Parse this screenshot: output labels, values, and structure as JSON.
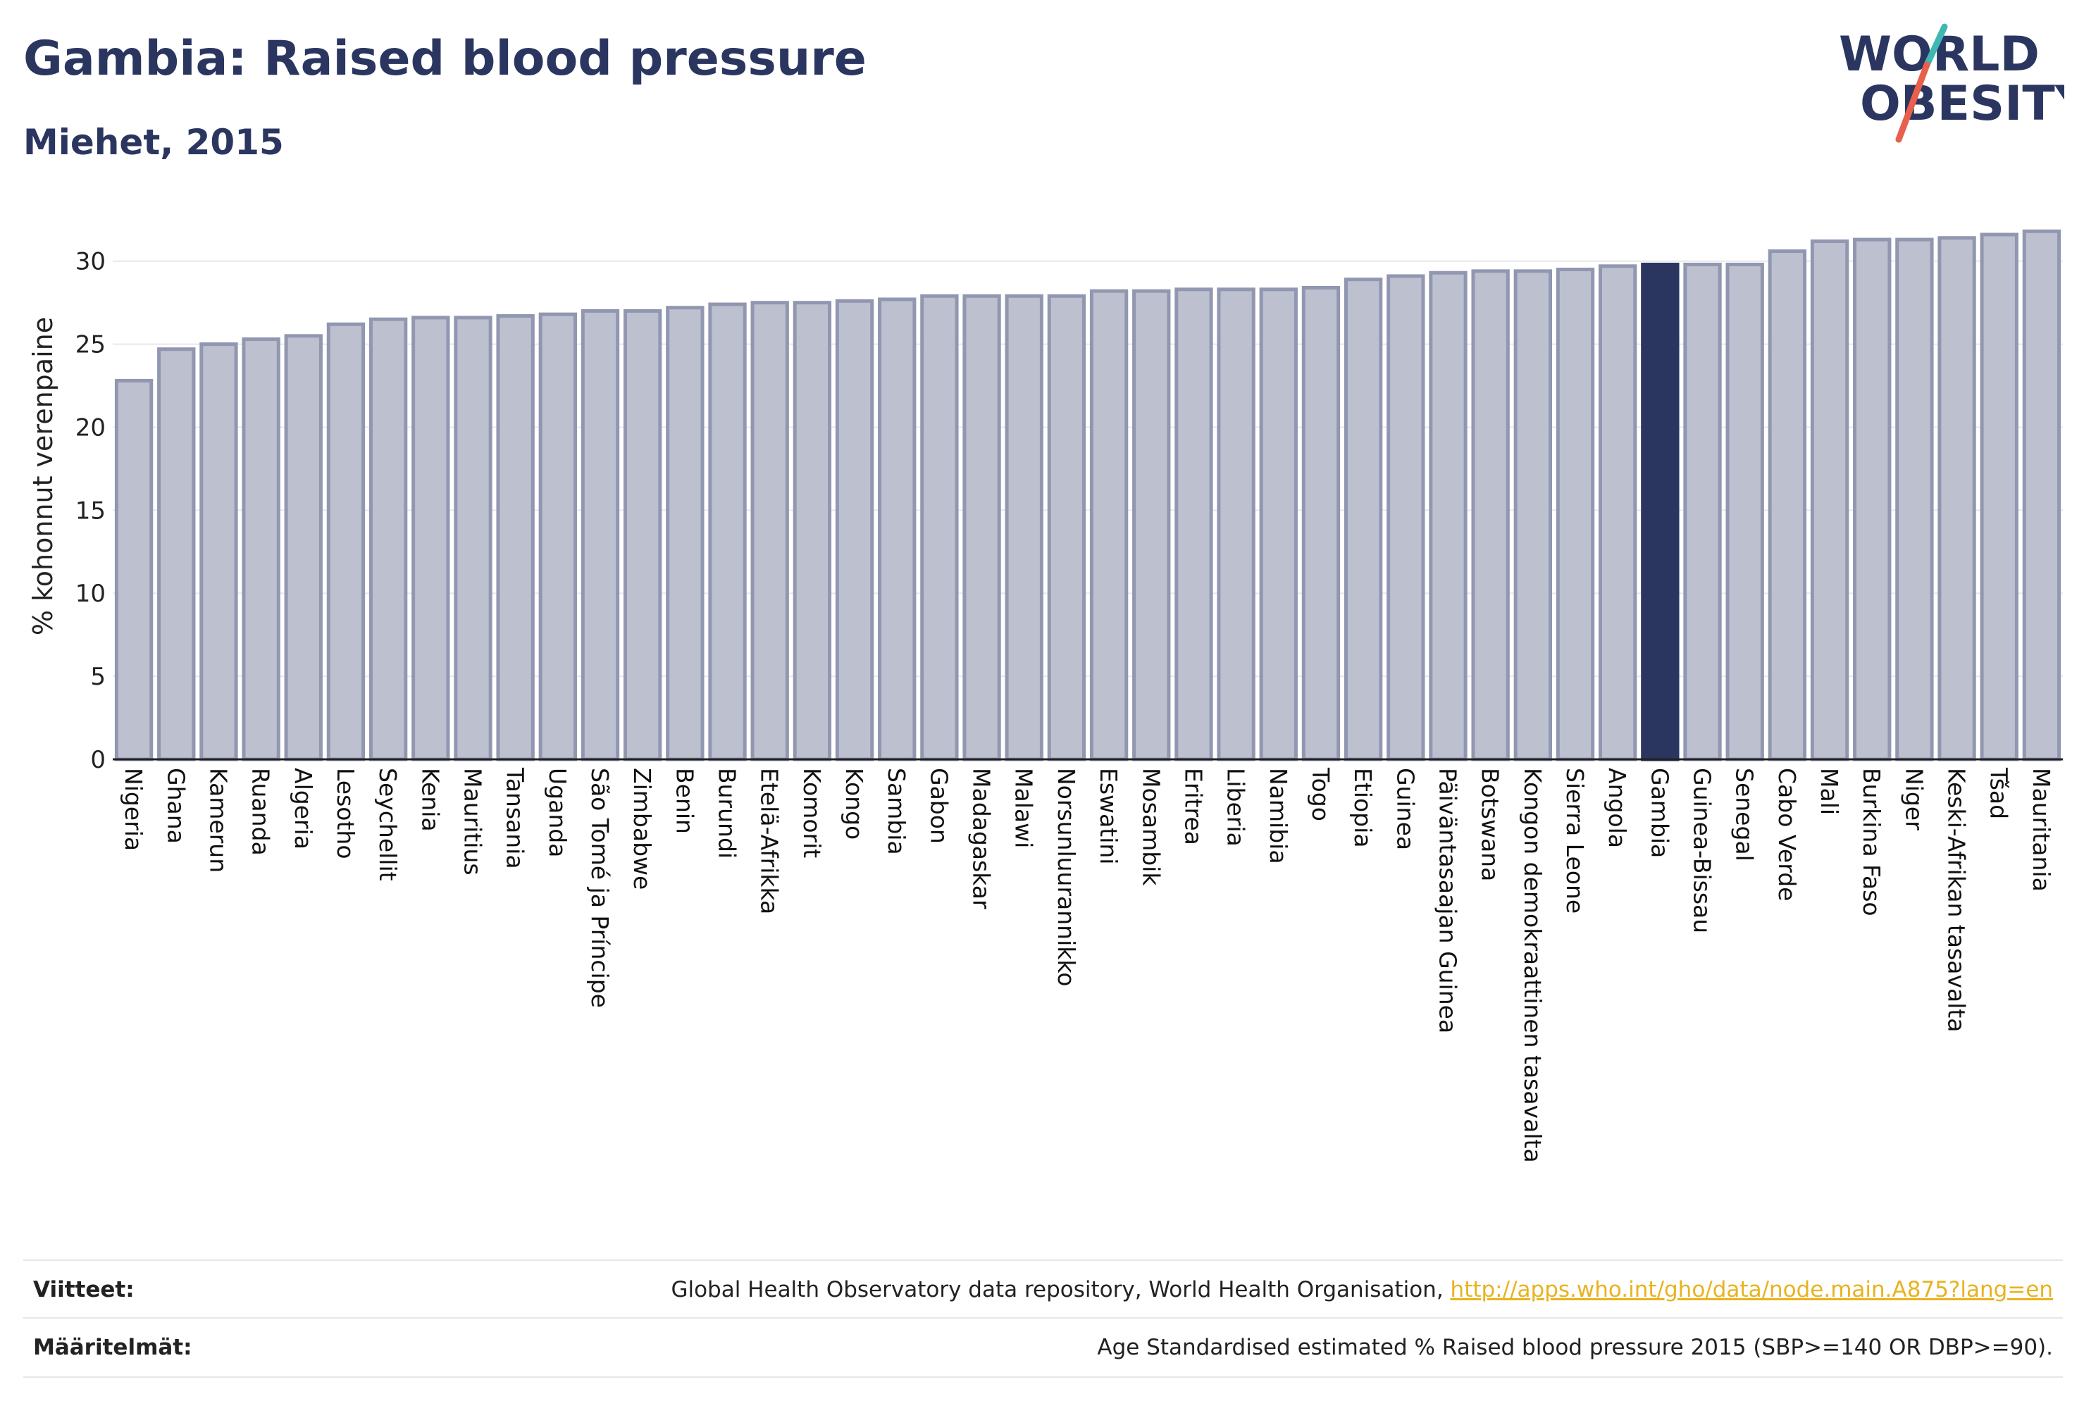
{
  "header": {
    "title": "Gambia: Raised blood pressure",
    "subtitle": "Miehet, 2015"
  },
  "logo": {
    "line1": "WORLD",
    "line2": "OBESITY",
    "colors": {
      "text": "#2b3660",
      "slash_red": "#e8604c",
      "slash_teal": "#3fb8b4"
    }
  },
  "colors": {
    "bar_fill": "#bcc0cf",
    "bar_stroke": "#9197b0",
    "highlight": "#2b3660",
    "grid": "#e8e8ec",
    "axis": "#222222"
  },
  "chart_data": {
    "type": "bar",
    "ylabel": "% kohonnut verenpaine",
    "ylim": [
      0,
      33
    ],
    "yticks": [
      0,
      5,
      10,
      15,
      20,
      25,
      30
    ],
    "grid": true,
    "highlight_category": "Gambia",
    "categories": [
      "Nigeria",
      "Ghana",
      "Kamerun",
      "Ruanda",
      "Algeria",
      "Lesotho",
      "Seychellit",
      "Kenia",
      "Mauritius",
      "Tansania",
      "Uganda",
      "São Tomé ja Príncipe",
      "Zimbabwe",
      "Benin",
      "Burundi",
      "Etelä-Afrikka",
      "Komorit",
      "Kongo",
      "Sambia",
      "Gabon",
      "Madagaskar",
      "Malawi",
      "Norsunluurannikko",
      "Eswatini",
      "Mosambik",
      "Eritrea",
      "Liberia",
      "Namibia",
      "Togo",
      "Etiopia",
      "Guinea",
      "Päiväntasaajan Guinea",
      "Botswana",
      "Kongon demokraattinen tasavalta",
      "Sierra Leone",
      "Angola",
      "Gambia",
      "Guinea-Bissau",
      "Senegal",
      "Cabo Verde",
      "Mali",
      "Burkina Faso",
      "Niger",
      "Keski-Afrikan tasavalta",
      "Tšad",
      "Mauritania"
    ],
    "values": [
      22.8,
      24.7,
      25.0,
      25.3,
      25.5,
      26.2,
      26.5,
      26.6,
      26.6,
      26.7,
      26.8,
      27.0,
      27.0,
      27.2,
      27.4,
      27.5,
      27.5,
      27.6,
      27.7,
      27.9,
      27.9,
      27.9,
      27.9,
      28.2,
      28.2,
      28.3,
      28.3,
      28.3,
      28.4,
      28.9,
      29.1,
      29.3,
      29.4,
      29.4,
      29.5,
      29.7,
      29.8,
      29.8,
      29.8,
      30.6,
      31.2,
      31.3,
      31.3,
      31.4,
      31.6,
      31.8
    ]
  },
  "footer": {
    "sources_label": "Viitteet:",
    "sources_text": "Global Health Observatory data repository, World Health Organisation, ",
    "sources_link": "http://apps.who.int/gho/data/node.main.A875?lang=en",
    "definitions_label": "Määritelmät:",
    "definitions_text": "Age Standardised estimated % Raised blood pressure 2015 (SBP>=140 OR DBP>=90)."
  }
}
